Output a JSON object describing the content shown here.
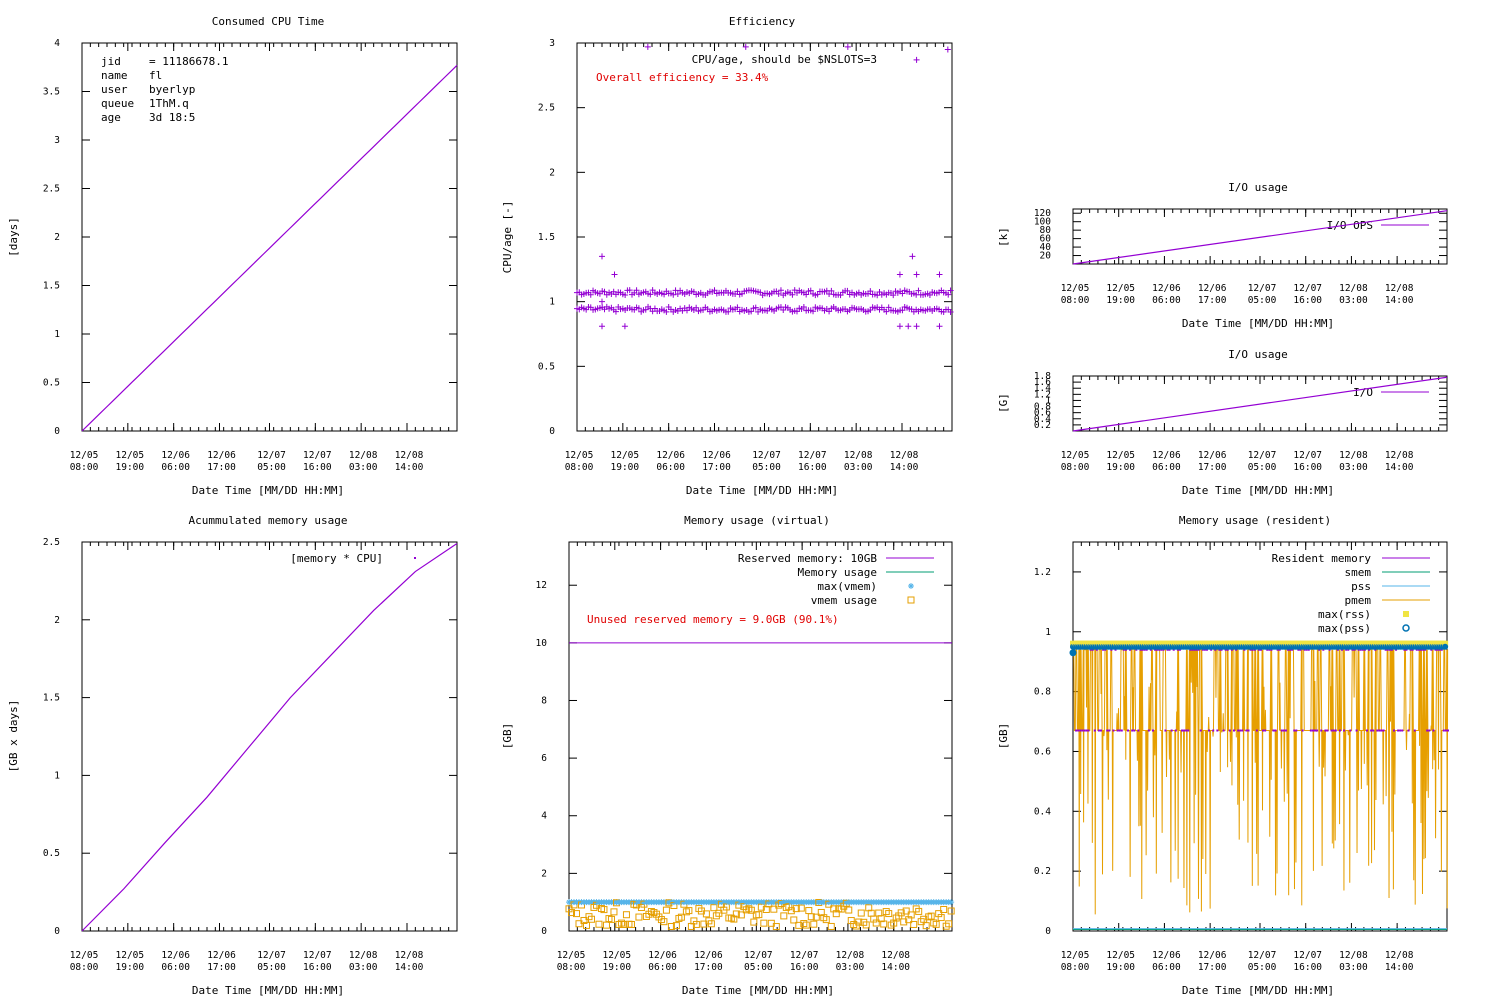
{
  "colors": {
    "purple": "#9400d3",
    "teal": "#009e73",
    "sky": "#56b4e9",
    "orange": "#e69f00",
    "yellow": "#f0e442",
    "blue": "#0072b2",
    "red": "#e00000"
  },
  "time_labels": [
    {
      "date": "12/05",
      "time": "08:00"
    },
    {
      "date": "12/05",
      "time": "19:00"
    },
    {
      "date": "12/06",
      "time": "06:00"
    },
    {
      "date": "12/06",
      "time": "17:00"
    },
    {
      "date": "12/07",
      "time": "05:00"
    },
    {
      "date": "12/07",
      "time": "16:00"
    },
    {
      "date": "12/08",
      "time": "03:00"
    },
    {
      "date": "12/08",
      "time": "14:00"
    }
  ],
  "xlabel": "Date Time [MM/DD HH:MM]",
  "chart_data": [
    {
      "id": "cpu",
      "type": "line",
      "title": "Consumed CPU Time",
      "ylabel": "[days]",
      "ylim": [
        0,
        4
      ],
      "yticks": [
        "0",
        "0.5",
        "1",
        "1.5",
        "2",
        "2.5",
        "3",
        "3.5",
        "4"
      ],
      "xlim_hours": [
        0,
        90
      ],
      "info": [
        {
          "key": "jid",
          "val": "= 11186678.1"
        },
        {
          "key": "name",
          "val": "fl"
        },
        {
          "key": "user",
          "val": "byerlyp"
        },
        {
          "key": "queue",
          "val": "1ThM.q"
        },
        {
          "key": "age",
          "val": "3d 18:5"
        }
      ],
      "series": [
        {
          "name": "cpu",
          "x": [
            0,
            90
          ],
          "y": [
            0,
            3.77
          ]
        }
      ]
    },
    {
      "id": "eff",
      "type": "scatter",
      "title": "Efficiency",
      "ylabel": "CPU/age [-]",
      "ylim": [
        0,
        3
      ],
      "yticks": [
        "0",
        "0.5",
        "1",
        "1.5",
        "2",
        "2.5",
        "3"
      ],
      "xlim_hours": [
        0,
        90
      ],
      "legend": "CPU/age, should be $NSLOTS=3",
      "annotation": "Overall efficiency = 33.4%",
      "bands": [
        1.07,
        0.94
      ],
      "outliers": [
        {
          "x": 6,
          "y": 1.35
        },
        {
          "x": 6,
          "y": 0.81
        },
        {
          "x": 6,
          "y": 1.0
        },
        {
          "x": 9,
          "y": 1.21
        },
        {
          "x": 11.5,
          "y": 0.81
        },
        {
          "x": 17,
          "y": 2.97
        },
        {
          "x": 40.5,
          "y": 2.97
        },
        {
          "x": 65,
          "y": 2.97
        },
        {
          "x": 77.5,
          "y": 1.21
        },
        {
          "x": 77.5,
          "y": 0.81
        },
        {
          "x": 79.5,
          "y": 0.81
        },
        {
          "x": 80.5,
          "y": 1.35
        },
        {
          "x": 81.5,
          "y": 2.87
        },
        {
          "x": 81.5,
          "y": 1.21
        },
        {
          "x": 81.5,
          "y": 0.81
        },
        {
          "x": 87,
          "y": 1.21
        },
        {
          "x": 87,
          "y": 0.81
        },
        {
          "x": 89,
          "y": 2.95
        }
      ]
    },
    {
      "id": "io_ops",
      "type": "line",
      "title": "I/O usage",
      "ylabel": "[k]",
      "ylim": [
        0,
        130
      ],
      "ytick_vals": [
        20,
        40,
        60,
        80,
        100,
        120
      ],
      "yticks": [
        "20",
        "40",
        "60",
        "80",
        "100",
        "120"
      ],
      "xlim_hours": [
        0,
        90
      ],
      "legend": "I/O OPS",
      "series": [
        {
          "name": "I/O OPS",
          "x": [
            0,
            90
          ],
          "y": [
            0,
            126
          ]
        }
      ]
    },
    {
      "id": "io",
      "type": "line",
      "title": "I/O usage",
      "ylabel": "[G]",
      "ylim": [
        0,
        1.8
      ],
      "ytick_vals": [
        0.2,
        0.4,
        0.6,
        0.8,
        1.0,
        1.2,
        1.4,
        1.6,
        1.8
      ],
      "yticks": [
        "0.2",
        "0.4",
        "0.6",
        "0.8",
        "1",
        "1.2",
        "1.4",
        "1.6",
        "1.8"
      ],
      "xlim_hours": [
        0,
        90
      ],
      "legend": "I/O",
      "series": [
        {
          "name": "I/O",
          "x": [
            0,
            90
          ],
          "y": [
            0,
            1.76
          ]
        }
      ]
    },
    {
      "id": "accmem",
      "type": "line",
      "title": "Acummulated memory usage",
      "ylabel": "[GB x days]",
      "ylim": [
        0,
        2.5
      ],
      "yticks": [
        "0",
        "0.5",
        "1",
        "1.5",
        "2",
        "2.5"
      ],
      "xlim_hours": [
        0,
        90
      ],
      "legend": "[memory * CPU]",
      "series": [
        {
          "name": "[memory * CPU]",
          "x": [
            0,
            10,
            20,
            30,
            40,
            50,
            60,
            70,
            80,
            90
          ],
          "y": [
            0,
            0.27,
            0.57,
            0.86,
            1.18,
            1.5,
            1.78,
            2.06,
            2.31,
            2.49
          ]
        }
      ]
    },
    {
      "id": "vmem",
      "type": "line",
      "title": "Memory usage (virtual)",
      "ylabel": "[GB]",
      "ylim": [
        0,
        13.5
      ],
      "yticks": [
        "0",
        "2",
        "4",
        "6",
        "8",
        "10",
        "12"
      ],
      "ytick_vals": [
        0,
        2,
        4,
        6,
        8,
        10,
        12
      ],
      "xlim_hours": [
        0,
        92
      ],
      "legend": [
        {
          "label": "Reserved memory: 10GB",
          "kind": "line",
          "color": "purple"
        },
        {
          "label": "Memory usage",
          "kind": "line",
          "color": "teal"
        },
        {
          "label": "max(vmem)",
          "kind": "star",
          "color": "sky"
        },
        {
          "label": "vmem usage",
          "kind": "square",
          "color": "orange"
        }
      ],
      "annotation": "Unused reserved memory = 9.0GB (90.1%)",
      "reserved_gb": 10,
      "max_vmem_gb": 1.0,
      "vmem_usage_range_gb": [
        0.15,
        1.0
      ]
    },
    {
      "id": "rmem",
      "type": "line",
      "title": "Memory usage (resident)",
      "ylabel": "[GB]",
      "ylim": [
        0,
        1.3
      ],
      "yticks": [
        "0",
        "0.2",
        "0.4",
        "0.6",
        "0.8",
        "1",
        "1.2"
      ],
      "ytick_vals": [
        0,
        0.2,
        0.4,
        0.6,
        0.8,
        1.0,
        1.2
      ],
      "xlim_hours": [
        0,
        90
      ],
      "legend": [
        {
          "label": "Resident memory",
          "kind": "line",
          "color": "purple"
        },
        {
          "label": "smem",
          "kind": "line",
          "color": "teal"
        },
        {
          "label": "pss",
          "kind": "line",
          "color": "sky"
        },
        {
          "label": "pmem",
          "kind": "line",
          "color": "orange"
        },
        {
          "label": "max(rss)",
          "kind": "filledsquare",
          "color": "yellow"
        },
        {
          "label": "max(pss)",
          "kind": "circle",
          "color": "blue"
        }
      ],
      "max_rss_gb": 0.96,
      "max_pss_gb": 0.95,
      "resident_levels_gb": [
        0.94,
        0.67
      ],
      "smem_gb": 0.005
    }
  ]
}
